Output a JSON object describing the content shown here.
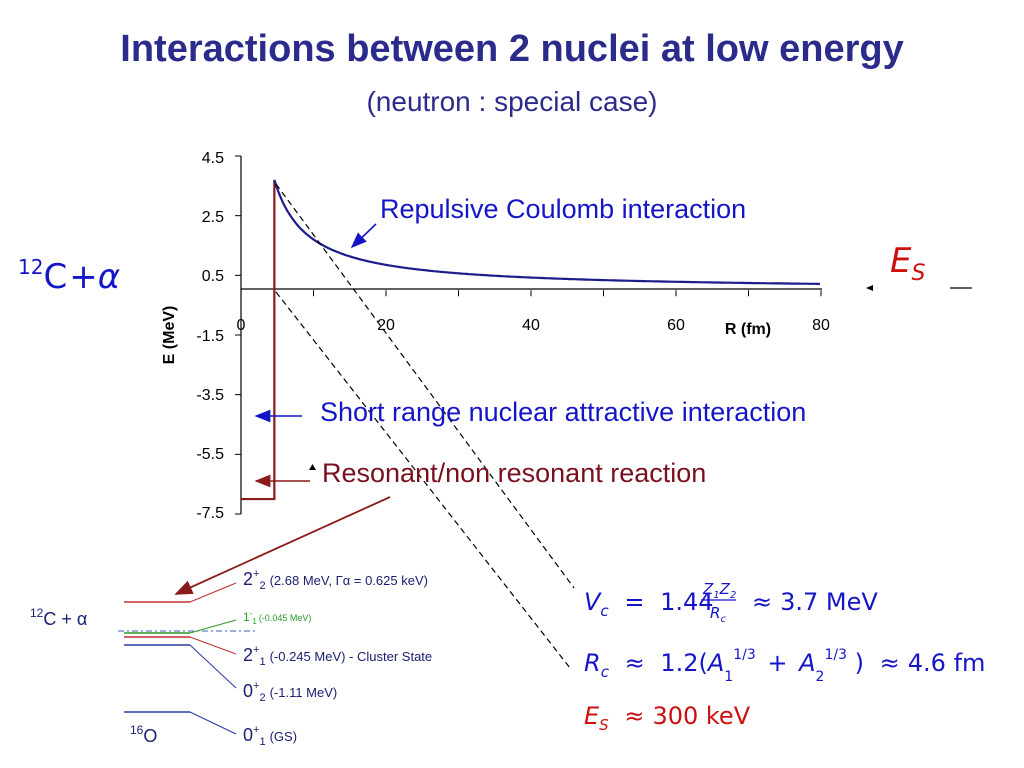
{
  "title": "Interactions between 2 nuclei at low energy",
  "subtitle": "(neutron : special case)",
  "chart_data": {
    "type": "line",
    "xlabel": "R (fm)",
    "ylabel": "E (MeV)",
    "xlim": [
      0,
      80
    ],
    "ylim": [
      -7.5,
      4.5
    ],
    "x_ticks": [
      "0",
      "20",
      "40",
      "60",
      "80"
    ],
    "y_ticks": [
      "4.5",
      "2.5",
      "0.5",
      "-1.5",
      "-3.5",
      "-5.5",
      "-7.5"
    ],
    "coulomb": {
      "r_c": 4.6,
      "v_c": 3.7,
      "r_max": 80
    },
    "nuclear_well": {
      "r_c": 4.6,
      "depth": -7.0
    }
  },
  "annotations": {
    "coulomb": "Repulsive Coulomb interaction",
    "nuclear": "Short range nuclear attractive interaction",
    "resonant": "Resonant/non resonant reaction"
  },
  "left_reaction": {
    "sup": "12",
    "element": "C",
    "plus": "+",
    "alpha": "α"
  },
  "es_label": {
    "E": "E",
    "sub": "S"
  },
  "formulas": {
    "vc": {
      "lhs": "V",
      "lhs_sub": "c",
      "eq": "=",
      "coef": "1.44",
      "num1": "Z",
      "num1_sub": "1",
      "num2": "Z",
      "num2_sub": "2",
      "den": "R",
      "den_sub": "c",
      "approx": "≈",
      "value": "3.7 MeV"
    },
    "rc": {
      "lhs": "R",
      "lhs_sub": "c",
      "approx1": "≈",
      "coef": "1.2(",
      "a1": "A",
      "a1_sub": "1",
      "a1_sup": "1/3",
      "plus": "+",
      "a2": "A",
      "a2_sub": "2",
      "a2_sup": "1/3",
      "close": ")",
      "approx2": "≈",
      "value": "4.6 fm"
    },
    "es": {
      "lhs": "E",
      "lhs_sub": "S",
      "approx": "≈",
      "value": "300 keV"
    }
  },
  "level_scheme": {
    "reaction_label": "12C + α",
    "reaction_sup": "12",
    "reaction_text": "C + α",
    "ground_sup": "16",
    "ground_text": "O",
    "levels": [
      {
        "jp": "2",
        "sup": "+",
        "sub": "2",
        "info": "(2.68 MeV, Γα = 0.625 keV)",
        "color": "#c03030"
      },
      {
        "jp": "1",
        "sup": "-",
        "sub": "1",
        "info": "(-0.045 MeV)",
        "color": "#2a9a2a"
      },
      {
        "jp": "2",
        "sup": "+",
        "sub": "1",
        "info": "(-0.245 MeV) - Cluster State",
        "color": "#c03030"
      },
      {
        "jp": "0",
        "sup": "+",
        "sub": "2",
        "info": "(-1.11 MeV)",
        "color": "#2a3aa0"
      },
      {
        "jp": "0",
        "sup": "+",
        "sub": "1",
        "info": "(GS)",
        "color": "#2a3aa0"
      }
    ]
  },
  "colors": {
    "title": "#2b2b8c",
    "blue": "#1515c8",
    "curve": "#1c1c8c",
    "well": "#8b1a1a",
    "red": "#cc1010"
  }
}
